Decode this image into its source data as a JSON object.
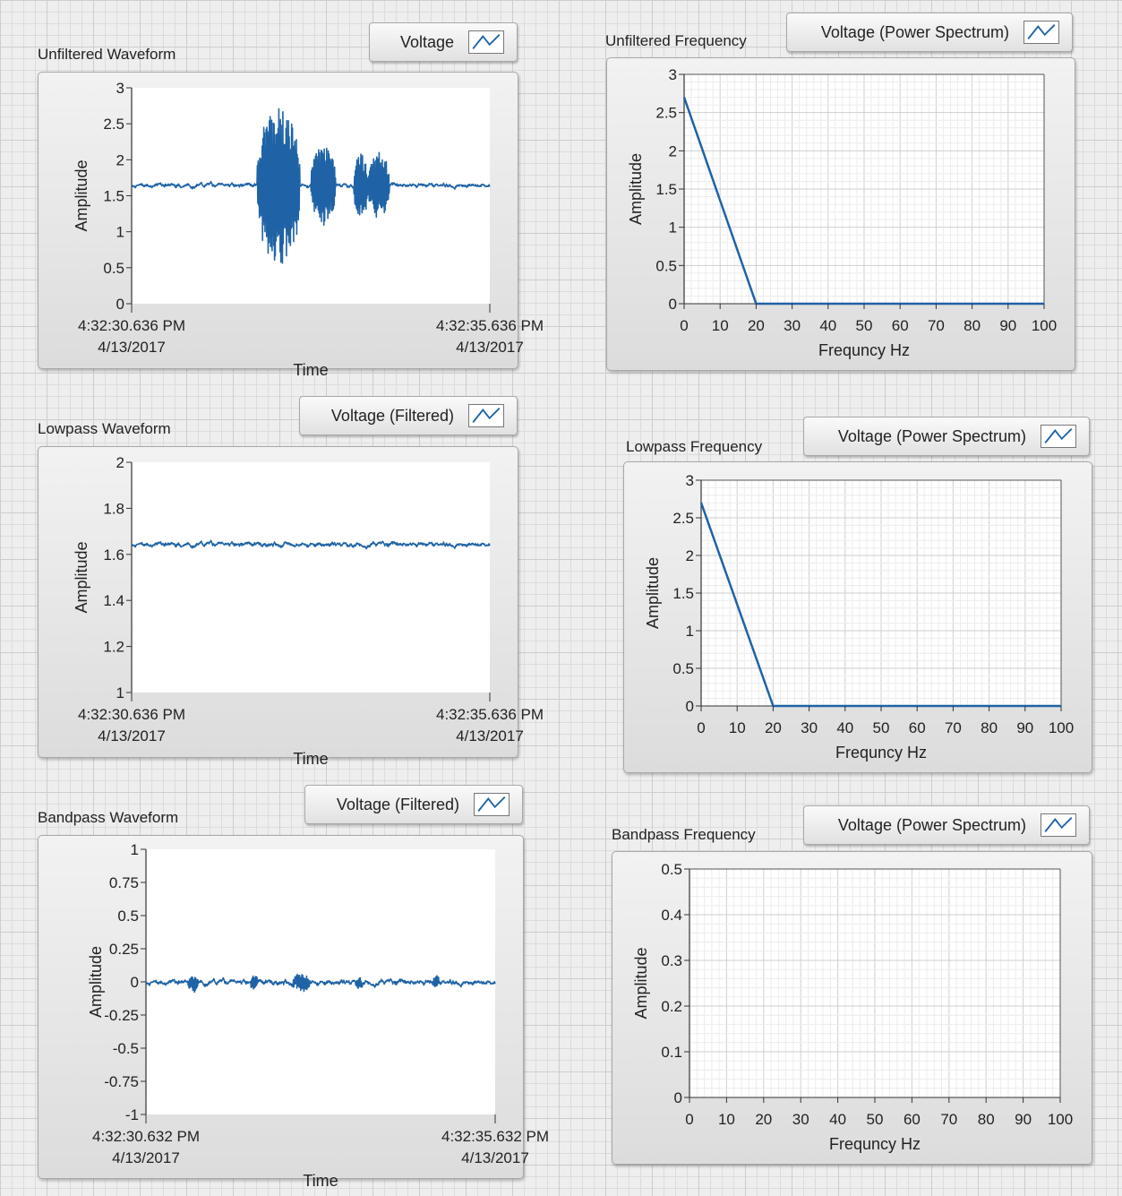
{
  "colors": {
    "trace": "#1f63a6",
    "plot_bg": "#ffffff",
    "grid": "#d8d8d8"
  },
  "panels": {
    "unfiltered_waveform": {
      "title": "Unfiltered Waveform",
      "legend": {
        "label": "Voltage",
        "icon": "line-plot-icon"
      },
      "chart_data": {
        "type": "line",
        "ylabel": "Amplitude",
        "xlabel": "Time",
        "ylim": [
          0,
          3
        ],
        "yticks": [
          "0",
          "0.5",
          "1",
          "1.5",
          "2",
          "2.5",
          "3"
        ],
        "xtick_start": [
          "4:32:30.636 PM",
          "4/13/2017"
        ],
        "xtick_end": [
          "4:32:35.636 PM",
          "4/13/2017"
        ],
        "baseline": 1.65,
        "bursts": [
          [
            0.35,
            0.47,
            1.1
          ],
          [
            0.43,
            0.47,
            0.8
          ],
          [
            0.5,
            0.57,
            0.55
          ],
          [
            0.55,
            0.57,
            0.3
          ],
          [
            0.62,
            0.66,
            0.45
          ],
          [
            0.66,
            0.72,
            0.45
          ]
        ]
      }
    },
    "unfiltered_frequency": {
      "title": "Unfiltered Frequency",
      "legend": {
        "label": "Voltage (Power Spectrum)",
        "icon": "line-plot-icon"
      },
      "chart_data": {
        "type": "line",
        "ylabel": "Amplitude",
        "xlabel": "Frequncy Hz",
        "ylim": [
          0,
          3
        ],
        "yticks": [
          "0",
          "0.5",
          "1",
          "1.5",
          "2",
          "2.5",
          "3"
        ],
        "xticks": [
          "0",
          "10",
          "20",
          "30",
          "40",
          "50",
          "60",
          "70",
          "80",
          "90",
          "100"
        ],
        "x": [
          0,
          20,
          100
        ],
        "y": [
          2.7,
          0,
          0
        ]
      }
    },
    "lowpass_waveform": {
      "title": "Lowpass Waveform",
      "legend": {
        "label": "Voltage (Filtered)",
        "icon": "line-plot-icon"
      },
      "chart_data": {
        "type": "line",
        "ylabel": "Amplitude",
        "xlabel": "Time",
        "ylim": [
          1,
          2
        ],
        "yticks": [
          "1",
          "1.2",
          "1.4",
          "1.6",
          "1.8",
          "2"
        ],
        "xtick_start": [
          "4:32:30.636 PM",
          "4/13/2017"
        ],
        "xtick_end": [
          "4:32:35.636 PM",
          "4/13/2017"
        ],
        "baseline": 1.645,
        "bursts": []
      }
    },
    "lowpass_frequency": {
      "title": "Lowpass Frequency",
      "legend": {
        "label": "Voltage (Power Spectrum)",
        "icon": "line-plot-icon"
      },
      "chart_data": {
        "type": "line",
        "ylabel": "Amplitude",
        "xlabel": "Frequncy Hz",
        "ylim": [
          0,
          3
        ],
        "yticks": [
          "0",
          "0.5",
          "1",
          "1.5",
          "2",
          "2.5",
          "3"
        ],
        "xticks": [
          "0",
          "10",
          "20",
          "30",
          "40",
          "50",
          "60",
          "70",
          "80",
          "90",
          "100"
        ],
        "x": [
          0,
          20,
          100
        ],
        "y": [
          2.7,
          0,
          0
        ]
      }
    },
    "bandpass_waveform": {
      "title": "Bandpass Waveform",
      "legend": {
        "label": "Voltage (Filtered)",
        "icon": "line-plot-icon"
      },
      "chart_data": {
        "type": "line",
        "ylabel": "Amplitude",
        "xlabel": "Time",
        "ylim": [
          -1,
          1
        ],
        "yticks": [
          "-1",
          "-0.75",
          "-0.5",
          "-0.25",
          "0",
          "0.25",
          "0.5",
          "0.75",
          "1"
        ],
        "xtick_start": [
          "4:32:30.632 PM",
          "4/13/2017"
        ],
        "xtick_end": [
          "4:32:35.632 PM",
          "4/13/2017"
        ],
        "baseline": 0,
        "bursts": [
          [
            0.12,
            0.15,
            0.06
          ],
          [
            0.3,
            0.32,
            0.05
          ],
          [
            0.42,
            0.47,
            0.06
          ],
          [
            0.6,
            0.62,
            0.04
          ],
          [
            0.82,
            0.84,
            0.04
          ]
        ]
      }
    },
    "bandpass_frequency": {
      "title": "Bandpass Frequency",
      "legend": {
        "label": "Voltage (Power Spectrum)",
        "icon": "line-plot-icon"
      },
      "chart_data": {
        "type": "line",
        "ylabel": "Amplitude",
        "xlabel": "Frequncy Hz",
        "ylim": [
          0,
          0.5
        ],
        "yticks": [
          "0",
          "0.1",
          "0.2",
          "0.3",
          "0.4",
          "0.5"
        ],
        "xticks": [
          "0",
          "10",
          "20",
          "30",
          "40",
          "50",
          "60",
          "70",
          "80",
          "90",
          "100"
        ],
        "x": [],
        "y": []
      }
    }
  }
}
